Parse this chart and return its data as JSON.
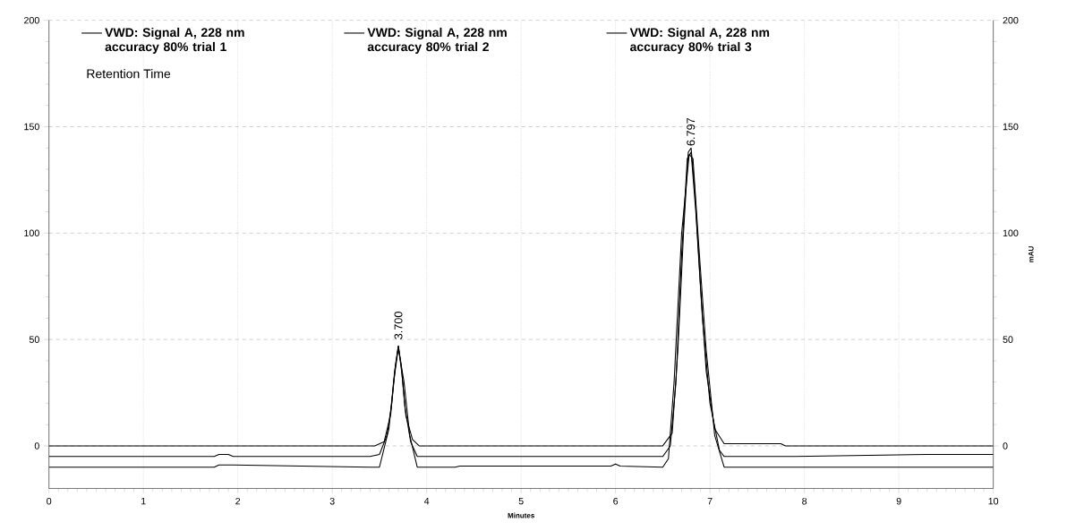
{
  "chart_data": {
    "type": "line",
    "xlabel": "Minutes",
    "y2label": "mAU",
    "series": [
      {
        "name": "VWD: Signal A, 228 nm accuracy 80% trial 1",
        "color": "#000000",
        "x": [
          0,
          1.8,
          3.45,
          3.55,
          3.62,
          3.66,
          3.7,
          3.74,
          3.78,
          3.85,
          3.92,
          6.5,
          6.6,
          6.66,
          6.72,
          6.77,
          6.8,
          6.84,
          6.9,
          6.96,
          7.05,
          7.15,
          7.2,
          7.75,
          7.8,
          10
        ],
        "values": [
          0,
          0,
          0,
          2,
          15,
          35,
          47,
          33,
          14,
          3,
          0,
          0,
          6,
          45,
          100,
          138,
          140,
          120,
          75,
          35,
          8,
          1,
          1,
          1,
          0,
          0
        ]
      },
      {
        "name": "VWD: Signal A, 228 nm accuracy 80% trial 2",
        "color": "#000000",
        "x": [
          0,
          1.75,
          1.8,
          1.9,
          1.95,
          3.4,
          3.5,
          3.58,
          3.63,
          3.67,
          3.7,
          3.73,
          3.77,
          3.83,
          3.9,
          4.4,
          6.5,
          6.58,
          6.64,
          6.7,
          6.76,
          6.8,
          6.85,
          6.92,
          7,
          7.1,
          7.15,
          7.9,
          9.3,
          9.5,
          9.8,
          10
        ],
        "values": [
          -5,
          -5,
          -4,
          -4,
          -5,
          -5,
          -4,
          5,
          20,
          38,
          47,
          38,
          18,
          2,
          -5,
          -5,
          -5,
          0,
          30,
          90,
          135,
          138,
          110,
          60,
          20,
          -2,
          -5,
          -5,
          -4,
          -4,
          -4,
          -4
        ]
      },
      {
        "name": "VWD: Signal A, 228 nm accuracy 80% trial 3",
        "color": "#000000",
        "x": [
          0,
          1.75,
          1.8,
          1.95,
          3.4,
          3.5,
          3.6,
          3.65,
          3.7,
          3.76,
          3.82,
          3.9,
          4.3,
          4.35,
          5.5,
          5.95,
          6.0,
          6.05,
          6.5,
          6.56,
          6.62,
          6.7,
          6.78,
          6.82,
          6.88,
          6.96,
          7.05,
          7.15,
          7.9,
          10
        ],
        "values": [
          -10,
          -10,
          -9,
          -9,
          -10,
          -10,
          8,
          30,
          46,
          30,
          5,
          -10,
          -10,
          -9.5,
          -9.5,
          -9.5,
          -8.5,
          -9.5,
          -10,
          -6,
          30,
          100,
          137,
          135,
          95,
          45,
          5,
          -10,
          -10,
          -10
        ]
      }
    ],
    "xlim": [
      0,
      10
    ],
    "xticks": [
      0,
      1,
      2,
      3,
      4,
      5,
      6,
      7,
      8,
      9,
      10
    ],
    "ylim": [
      -20,
      200
    ],
    "yticks": [
      0,
      50,
      100,
      150,
      200
    ],
    "y2lim": [
      -20,
      200
    ],
    "y2ticks": [
      0,
      50,
      100,
      150,
      200
    ],
    "annotations": [
      "Retention Time",
      {
        "text": "3.700",
        "x": 3.7,
        "y": 47
      },
      {
        "text": "6.797",
        "x": 6.797,
        "y": 138
      }
    ],
    "grid": true,
    "legend": "top"
  }
}
